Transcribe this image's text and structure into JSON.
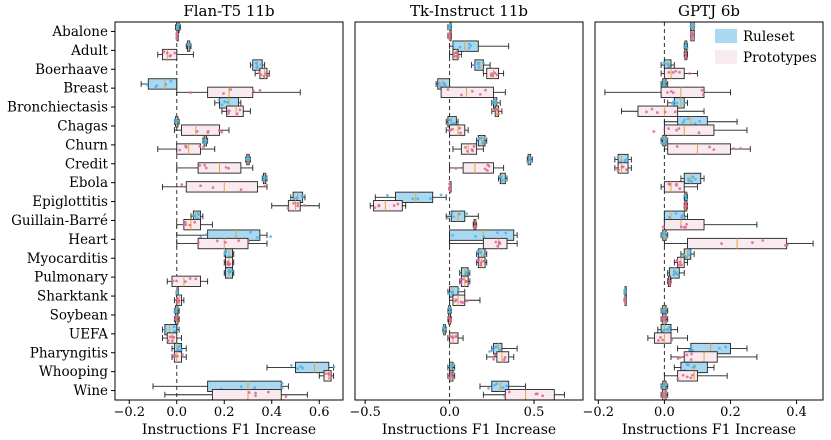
{
  "chart_data": [
    {
      "type": "box",
      "title": "Flan-T5 11b",
      "xlabel": "Instructions F1 Increase",
      "xlim": [
        -0.26,
        0.7
      ],
      "xticks": [
        -0.2,
        0.0,
        0.2,
        0.4,
        0.6
      ],
      "xtick_labels": [
        "−0.2",
        "0.0",
        "0.2",
        "0.4",
        "0.6"
      ],
      "reference_line": 0.0,
      "rows": [
        {
          "task": "Abalone",
          "ruleset": [
            -0.005,
            0.0,
            0.005,
            0.01,
            0.015
          ],
          "prototypes": [
            0.0,
            0.0,
            0.0,
            0.0,
            0.0
          ]
        },
        {
          "task": "Adult",
          "ruleset": [
            0.04,
            0.045,
            0.05,
            0.055,
            0.06
          ],
          "prototypes": [
            -0.08,
            -0.06,
            -0.04,
            0.0,
            0.07
          ]
        },
        {
          "task": "Boerhaave",
          "ruleset": [
            0.31,
            0.32,
            0.34,
            0.36,
            0.37
          ],
          "prototypes": [
            0.33,
            0.35,
            0.37,
            0.38,
            0.39
          ]
        },
        {
          "task": "Breast",
          "ruleset": [
            -0.15,
            -0.12,
            -0.05,
            0.0,
            0.0
          ],
          "prototypes": [
            0.0,
            0.13,
            0.22,
            0.32,
            0.52
          ]
        },
        {
          "task": "Bronchiectasis",
          "ruleset": [
            0.16,
            0.18,
            0.22,
            0.26,
            0.27
          ],
          "prototypes": [
            0.19,
            0.21,
            0.25,
            0.28,
            0.31
          ]
        },
        {
          "task": "Chagas",
          "ruleset": [
            -0.01,
            -0.005,
            0.0,
            0.005,
            0.01
          ],
          "prototypes": [
            -0.01,
            0.02,
            0.08,
            0.18,
            0.22
          ]
        },
        {
          "task": "Churn",
          "ruleset": [
            0.11,
            0.115,
            0.12,
            0.125,
            0.13
          ],
          "prototypes": [
            -0.08,
            0.0,
            0.05,
            0.1,
            0.16
          ]
        },
        {
          "task": "Credit",
          "ruleset": [
            0.29,
            0.295,
            0.3,
            0.305,
            0.31
          ],
          "prototypes": [
            0.0,
            0.09,
            0.18,
            0.27,
            0.32
          ]
        },
        {
          "task": "Ebola",
          "ruleset": [
            0.36,
            0.365,
            0.37,
            0.375,
            0.38
          ],
          "prototypes": [
            -0.06,
            0.04,
            0.2,
            0.34,
            0.38
          ]
        },
        {
          "task": "Epiglottitis",
          "ruleset": [
            0.48,
            0.49,
            0.51,
            0.53,
            0.54
          ],
          "prototypes": [
            0.4,
            0.47,
            0.5,
            0.52,
            0.6
          ]
        },
        {
          "task": "Guillain-Barré",
          "ruleset": [
            0.06,
            0.07,
            0.08,
            0.1,
            0.11
          ],
          "prototypes": [
            0.0,
            0.03,
            0.06,
            0.1,
            0.15
          ]
        },
        {
          "task": "Heart",
          "ruleset": [
            0.0,
            0.13,
            0.25,
            0.35,
            0.38
          ],
          "prototypes": [
            0.0,
            0.09,
            0.2,
            0.3,
            0.38
          ]
        },
        {
          "task": "Myocarditis",
          "ruleset": [
            0.2,
            0.205,
            0.22,
            0.235,
            0.24
          ],
          "prototypes": [
            0.2,
            0.205,
            0.22,
            0.235,
            0.24
          ]
        },
        {
          "task": "Pulmonary",
          "ruleset": [
            0.2,
            0.205,
            0.22,
            0.235,
            0.24
          ],
          "prototypes": [
            -0.04,
            -0.02,
            0.03,
            0.1,
            0.13
          ]
        },
        {
          "task": "Sharktank",
          "ruleset": [
            0.0,
            0.0,
            0.0,
            0.0,
            0.0
          ],
          "prototypes": [
            -0.01,
            0.0,
            0.01,
            0.02,
            0.03
          ]
        },
        {
          "task": "Soybean",
          "ruleset": [
            -0.01,
            -0.005,
            0.0,
            0.005,
            0.01
          ],
          "prototypes": [
            -0.01,
            -0.005,
            0.0,
            0.005,
            0.01
          ]
        },
        {
          "task": "UEFA",
          "ruleset": [
            -0.06,
            -0.05,
            -0.03,
            0.0,
            0.01
          ],
          "prototypes": [
            -0.06,
            -0.04,
            -0.02,
            0.0,
            0.02
          ]
        },
        {
          "task": "Pharyngitis",
          "ruleset": [
            -0.02,
            -0.01,
            0.0,
            0.02,
            0.04
          ],
          "prototypes": [
            -0.02,
            -0.01,
            0.0,
            0.02,
            0.04
          ]
        },
        {
          "task": "Whooping",
          "ruleset": [
            0.38,
            0.5,
            0.58,
            0.64,
            0.66
          ],
          "prototypes": [
            0.6,
            0.62,
            0.64,
            0.65,
            0.66
          ]
        },
        {
          "task": "Wine",
          "ruleset": [
            -0.1,
            0.13,
            0.3,
            0.44,
            0.47
          ],
          "prototypes": [
            -0.05,
            0.15,
            0.3,
            0.44,
            0.55
          ]
        }
      ]
    },
    {
      "type": "box",
      "title": "Tk-Instruct 11b",
      "xlabel": "Instructions F1 Increase",
      "xlim": [
        -0.56,
        0.79
      ],
      "xticks": [
        -0.5,
        0.0,
        0.5
      ],
      "xtick_labels": [
        "−0.5",
        "0.0",
        "0.5"
      ],
      "reference_line": 0.0,
      "rows": [
        {
          "task": "Abalone",
          "ruleset": [
            -0.01,
            0.0,
            0.0,
            0.0,
            0.01
          ],
          "prototypes": [
            -0.01,
            0.0,
            0.0,
            0.0,
            0.01
          ]
        },
        {
          "task": "Adult",
          "ruleset": [
            0.0,
            0.02,
            0.09,
            0.17,
            0.35
          ],
          "prototypes": [
            0.0,
            0.02,
            0.04,
            0.05,
            0.07
          ]
        },
        {
          "task": "Boerhaave",
          "ruleset": [
            0.13,
            0.15,
            0.18,
            0.2,
            0.24
          ],
          "prototypes": [
            0.2,
            0.22,
            0.26,
            0.29,
            0.32
          ]
        },
        {
          "task": "Breast",
          "ruleset": [
            -0.08,
            -0.07,
            -0.04,
            0.0,
            0.0
          ],
          "prototypes": [
            -0.02,
            -0.05,
            0.1,
            0.26,
            0.33
          ]
        },
        {
          "task": "Bronchiectasis",
          "ruleset": [
            0.25,
            0.26,
            0.27,
            0.28,
            0.3
          ],
          "prototypes": [
            0.25,
            0.27,
            0.28,
            0.29,
            0.31
          ]
        },
        {
          "task": "Chagas",
          "ruleset": [
            -0.02,
            -0.01,
            0.01,
            0.04,
            0.05
          ],
          "prototypes": [
            -0.02,
            0.0,
            0.05,
            0.09,
            0.11
          ]
        },
        {
          "task": "Churn",
          "ruleset": [
            0.16,
            0.17,
            0.19,
            0.21,
            0.22
          ],
          "prototypes": [
            0.02,
            0.07,
            0.11,
            0.16,
            0.2
          ]
        },
        {
          "task": "Credit",
          "ruleset": [
            0.46,
            0.465,
            0.47,
            0.48,
            0.49
          ],
          "prototypes": [
            0.0,
            0.08,
            0.15,
            0.26,
            0.32
          ]
        },
        {
          "task": "Ebola",
          "ruleset": [
            0.29,
            0.3,
            0.31,
            0.33,
            0.34
          ],
          "prototypes": [
            0.0,
            0.0,
            0.0,
            0.0,
            0.0
          ]
        },
        {
          "task": "Epiglottitis",
          "ruleset": [
            -0.44,
            -0.32,
            -0.2,
            -0.1,
            -0.02
          ],
          "prototypes": [
            -0.47,
            -0.45,
            -0.38,
            -0.28,
            -0.26
          ]
        },
        {
          "task": "Guillain-Barré",
          "ruleset": [
            -0.02,
            0.01,
            0.05,
            0.09,
            0.17
          ],
          "prototypes": [
            0.14,
            0.145,
            0.15,
            0.155,
            0.16
          ]
        },
        {
          "task": "Heart",
          "ruleset": [
            0.0,
            0.0,
            0.2,
            0.38,
            0.4
          ],
          "prototypes": [
            0.0,
            0.2,
            0.29,
            0.34,
            0.4
          ]
        },
        {
          "task": "Myocarditis",
          "ruleset": [
            0.16,
            0.17,
            0.19,
            0.21,
            0.22
          ],
          "prototypes": [
            0.16,
            0.17,
            0.19,
            0.21,
            0.22
          ]
        },
        {
          "task": "Pulmonary",
          "ruleset": [
            0.06,
            0.07,
            0.09,
            0.11,
            0.12
          ],
          "prototypes": [
            0.06,
            0.07,
            0.09,
            0.11,
            0.12
          ]
        },
        {
          "task": "Sharktank",
          "ruleset": [
            -0.01,
            0.0,
            0.02,
            0.05,
            0.09
          ],
          "prototypes": [
            0.0,
            0.02,
            0.05,
            0.09,
            0.18
          ]
        },
        {
          "task": "Soybean",
          "ruleset": [
            -0.01,
            -0.005,
            0.0,
            0.005,
            0.01
          ],
          "prototypes": [
            -0.01,
            -0.005,
            0.0,
            0.005,
            0.01
          ]
        },
        {
          "task": "UEFA",
          "ruleset": [
            -0.04,
            -0.035,
            -0.03,
            -0.025,
            -0.02
          ],
          "prototypes": [
            -0.01,
            0.0,
            0.02,
            0.05,
            0.08
          ]
        },
        {
          "task": "Pharyngitis",
          "ruleset": [
            0.25,
            0.26,
            0.29,
            0.31,
            0.4
          ],
          "prototypes": [
            0.22,
            0.28,
            0.31,
            0.35,
            0.38
          ]
        },
        {
          "task": "Whooping",
          "ruleset": [
            -0.01,
            0.0,
            0.01,
            0.02,
            0.03
          ],
          "prototypes": [
            -0.01,
            0.0,
            0.01,
            0.02,
            0.03
          ]
        },
        {
          "task": "Wine",
          "ruleset": [
            0.18,
            0.25,
            0.3,
            0.35,
            0.45
          ],
          "prototypes": [
            0.2,
            0.33,
            0.45,
            0.62,
            0.68
          ]
        }
      ]
    },
    {
      "type": "box",
      "title": "GPTJ 6b",
      "xlabel": "Instructions F1 Increase",
      "xlim": [
        -0.21,
        0.48
      ],
      "xticks": [
        -0.2,
        0.0,
        0.2,
        0.4
      ],
      "xtick_labels": [
        "−0.2",
        "0.0",
        "0.2",
        "0.4"
      ],
      "reference_line": 0.0,
      "legend": {
        "location": "top-right",
        "entries": [
          "Ruleset",
          "Prototypes"
        ]
      },
      "rows": [
        {
          "task": "Abalone",
          "ruleset": [
            0.08,
            0.08,
            0.085,
            0.09,
            0.09
          ],
          "prototypes": [
            0.08,
            0.08,
            0.085,
            0.09,
            0.09
          ]
        },
        {
          "task": "Adult",
          "ruleset": [
            0.06,
            0.062,
            0.065,
            0.068,
            0.07
          ],
          "prototypes": [
            0.06,
            0.062,
            0.065,
            0.068,
            0.07
          ]
        },
        {
          "task": "Boerhaave",
          "ruleset": [
            -0.01,
            0.0,
            0.01,
            0.02,
            0.03
          ],
          "prototypes": [
            -0.01,
            0.0,
            0.02,
            0.06,
            0.1
          ]
        },
        {
          "task": "Breast",
          "ruleset": [
            -0.01,
            -0.005,
            0.0,
            0.005,
            0.01
          ],
          "prototypes": [
            -0.18,
            -0.01,
            0.05,
            0.12,
            0.2
          ]
        },
        {
          "task": "Bronchiectasis",
          "ruleset": [
            0.01,
            0.03,
            0.05,
            0.06,
            0.07
          ],
          "prototypes": [
            -0.13,
            -0.08,
            0.0,
            0.04,
            0.12
          ]
        },
        {
          "task": "Chagas",
          "ruleset": [
            0.0,
            0.04,
            0.08,
            0.13,
            0.22
          ],
          "prototypes": [
            0.0,
            0.0,
            0.06,
            0.15,
            0.25
          ]
        },
        {
          "task": "Churn",
          "ruleset": [
            -0.01,
            -0.005,
            0.0,
            0.005,
            0.01
          ],
          "prototypes": [
            0.0,
            0.01,
            0.1,
            0.2,
            0.26
          ]
        },
        {
          "task": "Credit",
          "ruleset": [
            -0.15,
            -0.14,
            -0.13,
            -0.11,
            -0.1
          ],
          "prototypes": [
            -0.15,
            -0.14,
            -0.13,
            -0.11,
            -0.1
          ]
        },
        {
          "task": "Ebola",
          "ruleset": [
            0.05,
            0.06,
            0.08,
            0.11,
            0.12
          ],
          "prototypes": [
            -0.01,
            0.0,
            0.02,
            0.06,
            0.1
          ]
        },
        {
          "task": "Epiglottitis",
          "ruleset": [
            0.06,
            0.062,
            0.065,
            0.068,
            0.07
          ],
          "prototypes": [
            0.06,
            0.062,
            0.065,
            0.068,
            0.07
          ]
        },
        {
          "task": "Guillain-Barré",
          "ruleset": [
            0.0,
            0.0,
            0.02,
            0.06,
            0.07
          ],
          "prototypes": [
            0.0,
            0.0,
            0.05,
            0.12,
            0.28
          ]
        },
        {
          "task": "Heart",
          "ruleset": [
            -0.01,
            -0.005,
            0.0,
            0.005,
            0.01
          ],
          "prototypes": [
            0.0,
            0.07,
            0.22,
            0.37,
            0.45
          ]
        },
        {
          "task": "Myocarditis",
          "ruleset": [
            0.05,
            0.06,
            0.07,
            0.08,
            0.09
          ],
          "prototypes": [
            0.03,
            0.04,
            0.05,
            0.06,
            0.07
          ]
        },
        {
          "task": "Pulmonary",
          "ruleset": [
            0.01,
            0.015,
            0.03,
            0.045,
            0.06
          ],
          "prototypes": [
            0.01,
            0.012,
            0.015,
            0.018,
            0.02
          ]
        },
        {
          "task": "Sharktank",
          "ruleset": [
            -0.12,
            -0.12,
            -0.12,
            -0.12,
            -0.12
          ],
          "prototypes": [
            -0.12,
            -0.12,
            -0.12,
            -0.12,
            -0.12
          ]
        },
        {
          "task": "Soybean",
          "ruleset": [
            -0.01,
            -0.005,
            0.0,
            0.005,
            0.01
          ],
          "prototypes": [
            -0.01,
            -0.005,
            0.0,
            0.005,
            0.01
          ]
        },
        {
          "task": "UEFA",
          "ruleset": [
            -0.02,
            -0.01,
            0.0,
            0.02,
            0.04
          ],
          "prototypes": [
            -0.05,
            -0.03,
            0.0,
            0.02,
            0.07
          ]
        },
        {
          "task": "Pharyngitis",
          "ruleset": [
            0.04,
            0.08,
            0.14,
            0.2,
            0.25
          ],
          "prototypes": [
            0.02,
            0.06,
            0.12,
            0.16,
            0.28
          ]
        },
        {
          "task": "Whooping",
          "ruleset": [
            0.03,
            0.05,
            0.09,
            0.13,
            0.15
          ],
          "prototypes": [
            0.0,
            0.04,
            0.09,
            0.1,
            0.19
          ]
        },
        {
          "task": "Wine",
          "ruleset": [
            -0.01,
            -0.005,
            0.0,
            0.005,
            0.01
          ],
          "prototypes": [
            -0.01,
            -0.005,
            0.0,
            0.005,
            0.01
          ]
        }
      ]
    }
  ],
  "legend": {
    "ruleset_label": "Ruleset",
    "prototypes_label": "Prototypes"
  },
  "colors": {
    "ruleset_fill": "#a9d8f0",
    "prototypes_fill": "#f9eaf0",
    "box_edge": "#222222",
    "ruleset_dots": "#4cb4e6",
    "prototypes_dots": "#d96a93",
    "reference_line": "#333333"
  }
}
